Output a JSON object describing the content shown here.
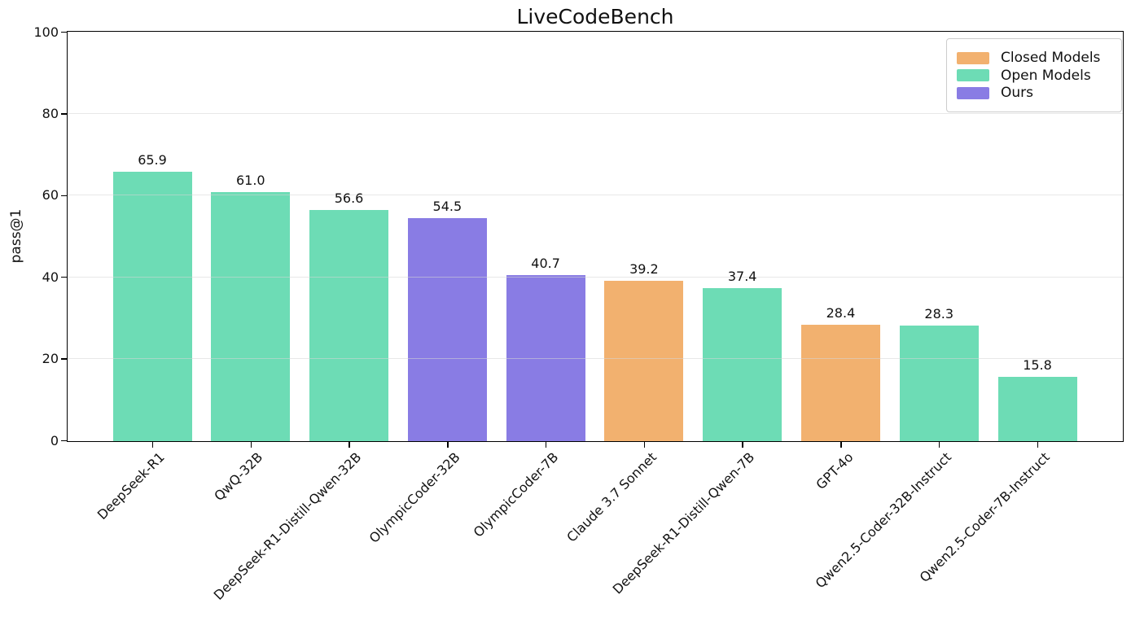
{
  "title": "LiveCodeBench",
  "y_axis_label": "pass@1",
  "legend": {
    "items": [
      {
        "label": "Closed Models",
        "group": "closed"
      },
      {
        "label": "Open Models",
        "group": "open"
      },
      {
        "label": "Ours",
        "group": "ours"
      }
    ]
  },
  "chart_data": {
    "type": "bar",
    "title": "LiveCodeBench",
    "xlabel": "",
    "ylabel": "pass@1",
    "ylim": [
      0,
      100
    ],
    "yticks": [
      0,
      20,
      40,
      60,
      80,
      100
    ],
    "grid": true,
    "legend_position": "upper right",
    "categories": [
      "DeepSeek-R1",
      "QwQ-32B",
      "DeepSeek-R1-Distill-Qwen-32B",
      "OlympicCoder-32B",
      "OlympicCoder-7B",
      "Claude 3.7 Sonnet",
      "DeepSeek-R1-Distill-Qwen-7B",
      "GPT-4o",
      "Qwen2.5-Coder-32B-Instruct",
      "Qwen2.5-Coder-7B-Instruct"
    ],
    "values": [
      65.9,
      61.0,
      56.6,
      54.5,
      40.7,
      39.2,
      37.4,
      28.4,
      28.3,
      15.8
    ],
    "bar_labels": [
      "65.9",
      "61.0",
      "56.6",
      "54.5",
      "40.7",
      "39.2",
      "37.4",
      "28.4",
      "28.3",
      "15.8"
    ],
    "groups": [
      "open",
      "open",
      "open",
      "ours",
      "ours",
      "closed",
      "open",
      "closed",
      "open",
      "open"
    ],
    "colors": {
      "closed": "#F2B16F",
      "open": "#6DDCB5",
      "ours": "#897CE4"
    }
  }
}
